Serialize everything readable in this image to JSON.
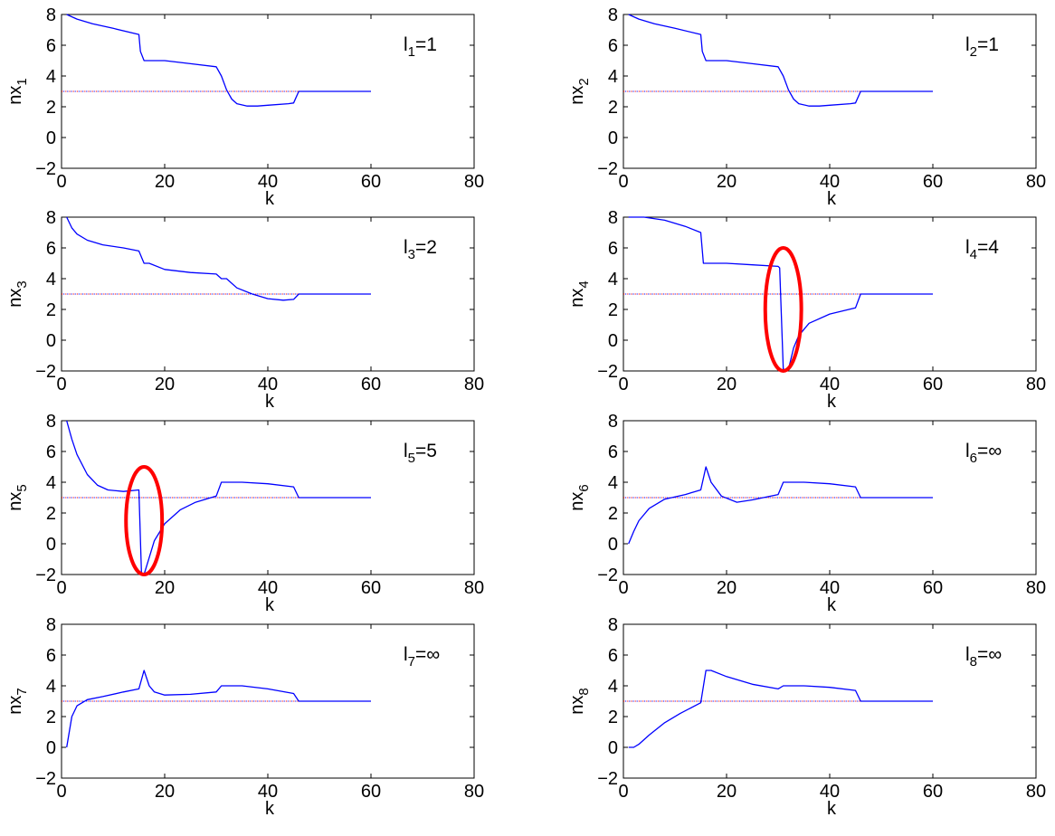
{
  "figure": {
    "line_color": "#0000ff",
    "ref_color_a": "#ff0000",
    "ref_color_b": "#0000ff",
    "highlight_color": "#ff0000"
  },
  "chart_data": [
    {
      "type": "line",
      "ylabel_main": "nx",
      "ylabel_sub": "1",
      "xlabel": "k",
      "annotation_main": "l",
      "annotation_sub": "1",
      "annotation_tail": "=1",
      "xlim": [
        0,
        80
      ],
      "ylim": [
        -2,
        8
      ],
      "xticks": [
        0,
        20,
        40,
        60,
        80
      ],
      "yticks": [
        -2,
        0,
        2,
        4,
        6,
        8
      ],
      "reference": {
        "y": 3,
        "x": [
          0,
          60
        ],
        "style": "dotted"
      },
      "series": [
        {
          "x": [
            1,
            3,
            6,
            10,
            15,
            15.3,
            16,
            20,
            25,
            30,
            31,
            32,
            33,
            34,
            36,
            38,
            40,
            44,
            45,
            46,
            50,
            55,
            60
          ],
          "y": [
            8,
            7.7,
            7.4,
            7.1,
            6.7,
            5.6,
            5,
            5,
            4.8,
            4.6,
            4,
            3.1,
            2.5,
            2.2,
            2.05,
            2.05,
            2.1,
            2.2,
            2.25,
            3,
            3,
            3,
            3
          ]
        }
      ],
      "highlights": []
    },
    {
      "type": "line",
      "ylabel_main": "nx",
      "ylabel_sub": "2",
      "xlabel": "k",
      "annotation_main": "l",
      "annotation_sub": "2",
      "annotation_tail": "=1",
      "xlim": [
        0,
        80
      ],
      "ylim": [
        -2,
        8
      ],
      "xticks": [
        0,
        20,
        40,
        60,
        80
      ],
      "yticks": [
        -2,
        0,
        2,
        4,
        6,
        8
      ],
      "reference": {
        "y": 3,
        "x": [
          0,
          60
        ],
        "style": "dotted"
      },
      "series": [
        {
          "x": [
            1,
            3,
            6,
            10,
            15,
            15.3,
            16,
            20,
            25,
            30,
            31,
            32,
            33,
            34,
            36,
            38,
            40,
            44,
            45,
            46,
            50,
            55,
            60
          ],
          "y": [
            8,
            7.7,
            7.4,
            7.1,
            6.7,
            5.6,
            5,
            5,
            4.8,
            4.6,
            4,
            3.1,
            2.5,
            2.2,
            2.05,
            2.05,
            2.1,
            2.2,
            2.25,
            3,
            3,
            3,
            3
          ]
        }
      ],
      "highlights": []
    },
    {
      "type": "line",
      "ylabel_main": "nx",
      "ylabel_sub": "3",
      "xlabel": "k",
      "annotation_main": "l",
      "annotation_sub": "3",
      "annotation_tail": "=2",
      "xlim": [
        0,
        80
      ],
      "ylim": [
        -2,
        8
      ],
      "xticks": [
        0,
        20,
        40,
        60,
        80
      ],
      "yticks": [
        -2,
        0,
        2,
        4,
        6,
        8
      ],
      "reference": {
        "y": 3,
        "x": [
          0,
          60
        ],
        "style": "dotted"
      },
      "series": [
        {
          "x": [
            1,
            2,
            3,
            5,
            8,
            12,
            15,
            16,
            17,
            20,
            25,
            30,
            31,
            32,
            34,
            37,
            40,
            43,
            45,
            46,
            50,
            55,
            60
          ],
          "y": [
            8,
            7.3,
            6.9,
            6.5,
            6.2,
            6,
            5.8,
            5,
            5,
            4.6,
            4.4,
            4.3,
            4,
            4,
            3.4,
            3,
            2.7,
            2.6,
            2.65,
            3,
            3,
            3,
            3
          ]
        }
      ],
      "highlights": []
    },
    {
      "type": "line",
      "ylabel_main": "nx",
      "ylabel_sub": "4",
      "xlabel": "k",
      "annotation_main": "l",
      "annotation_sub": "4",
      "annotation_tail": "=4",
      "xlim": [
        0,
        80
      ],
      "ylim": [
        -2,
        8
      ],
      "xticks": [
        0,
        20,
        40,
        60,
        80
      ],
      "yticks": [
        -2,
        0,
        2,
        4,
        6,
        8
      ],
      "reference": {
        "y": 3,
        "x": [
          0,
          60
        ],
        "style": "dotted"
      },
      "series": [
        {
          "x": [
            1,
            4,
            8,
            12,
            15,
            15.5,
            20,
            25,
            30,
            30.3,
            31,
            32,
            33,
            34,
            36,
            40,
            45,
            46,
            50,
            55,
            60
          ],
          "y": [
            8,
            8,
            7.8,
            7.4,
            7,
            5,
            5,
            4.9,
            4.8,
            4.7,
            -1.9,
            -1.9,
            -0.5,
            0.3,
            1.1,
            1.7,
            2.1,
            3,
            3,
            3,
            3
          ]
        }
      ],
      "highlights": [
        {
          "cx": 31,
          "cy": 2,
          "rx": 3.5,
          "ry": 4
        }
      ]
    },
    {
      "type": "line",
      "ylabel_main": "nx",
      "ylabel_sub": "5",
      "xlabel": "k",
      "annotation_main": "l",
      "annotation_sub": "5",
      "annotation_tail": "=5",
      "xlim": [
        0,
        80
      ],
      "ylim": [
        -2,
        8
      ],
      "xticks": [
        0,
        20,
        40,
        60,
        80
      ],
      "yticks": [
        -2,
        0,
        2,
        4,
        6,
        8
      ],
      "reference": {
        "y": 3,
        "x": [
          0,
          60
        ],
        "style": "dotted"
      },
      "series": [
        {
          "x": [
            1,
            2,
            3,
            5,
            7,
            9,
            12,
            15,
            15.5,
            16,
            17,
            18,
            20,
            23,
            26,
            30,
            31,
            35,
            40,
            45,
            46,
            50,
            55,
            60
          ],
          "y": [
            8,
            6.8,
            5.8,
            4.5,
            3.8,
            3.5,
            3.4,
            3.5,
            -2,
            -2,
            -0.9,
            0.2,
            1.3,
            2.2,
            2.7,
            3.1,
            4,
            4,
            3.9,
            3.7,
            3,
            3,
            3,
            3
          ]
        }
      ],
      "highlights": [
        {
          "cx": 16,
          "cy": 1.5,
          "rx": 3.5,
          "ry": 3.5
        }
      ]
    },
    {
      "type": "line",
      "ylabel_main": "nx",
      "ylabel_sub": "6",
      "xlabel": "k",
      "annotation_main": "l",
      "annotation_sub": "6",
      "annotation_tail": "=∞",
      "xlim": [
        0,
        80
      ],
      "ylim": [
        -2,
        8
      ],
      "xticks": [
        0,
        20,
        40,
        60,
        80
      ],
      "yticks": [
        -2,
        0,
        2,
        4,
        6,
        8
      ],
      "reference": {
        "y": 3,
        "x": [
          0,
          60
        ],
        "style": "dotted"
      },
      "series": [
        {
          "x": [
            1,
            2,
            3,
            5,
            8,
            12,
            15,
            16,
            17,
            19,
            22,
            25,
            30,
            31,
            35,
            40,
            45,
            46,
            50,
            55,
            60
          ],
          "y": [
            0,
            0.8,
            1.5,
            2.3,
            2.9,
            3.2,
            3.5,
            5,
            4,
            3.1,
            2.7,
            2.85,
            3.2,
            4,
            4,
            3.9,
            3.7,
            3,
            3,
            3,
            3
          ]
        }
      ],
      "highlights": []
    },
    {
      "type": "line",
      "ylabel_main": "nx",
      "ylabel_sub": "7",
      "xlabel": "k",
      "annotation_main": "l",
      "annotation_sub": "7",
      "annotation_tail": "=∞",
      "xlim": [
        0,
        80
      ],
      "ylim": [
        -2,
        8
      ],
      "xticks": [
        0,
        20,
        40,
        60,
        80
      ],
      "yticks": [
        -2,
        0,
        2,
        4,
        6,
        8
      ],
      "reference": {
        "y": 3,
        "x": [
          0,
          60
        ],
        "style": "dotted"
      },
      "series": [
        {
          "x": [
            1,
            2,
            3,
            5,
            8,
            12,
            15,
            16,
            17,
            18,
            20,
            25,
            30,
            31,
            35,
            40,
            45,
            46,
            50,
            55,
            60
          ],
          "y": [
            0,
            2,
            2.7,
            3.1,
            3.3,
            3.6,
            3.8,
            5,
            4,
            3.6,
            3.4,
            3.45,
            3.6,
            4,
            4,
            3.8,
            3.5,
            3,
            3,
            3,
            3
          ]
        }
      ],
      "highlights": []
    },
    {
      "type": "line",
      "ylabel_main": "nx",
      "ylabel_sub": "8",
      "xlabel": "k",
      "annotation_main": "l",
      "annotation_sub": "8",
      "annotation_tail": "=∞",
      "xlim": [
        0,
        80
      ],
      "ylim": [
        -2,
        8
      ],
      "xticks": [
        0,
        20,
        40,
        60,
        80
      ],
      "yticks": [
        -2,
        0,
        2,
        4,
        6,
        8
      ],
      "reference": {
        "y": 3,
        "x": [
          0,
          60
        ],
        "style": "dotted"
      },
      "series": [
        {
          "x": [
            1,
            2,
            3,
            5,
            8,
            11,
            15,
            16,
            17,
            20,
            25,
            30,
            31,
            35,
            40,
            45,
            46,
            50,
            55,
            60
          ],
          "y": [
            0,
            0,
            0.2,
            0.8,
            1.6,
            2.2,
            2.9,
            5,
            5,
            4.6,
            4.1,
            3.8,
            4,
            4,
            3.9,
            3.7,
            3,
            3,
            3,
            3
          ]
        }
      ],
      "highlights": []
    }
  ]
}
